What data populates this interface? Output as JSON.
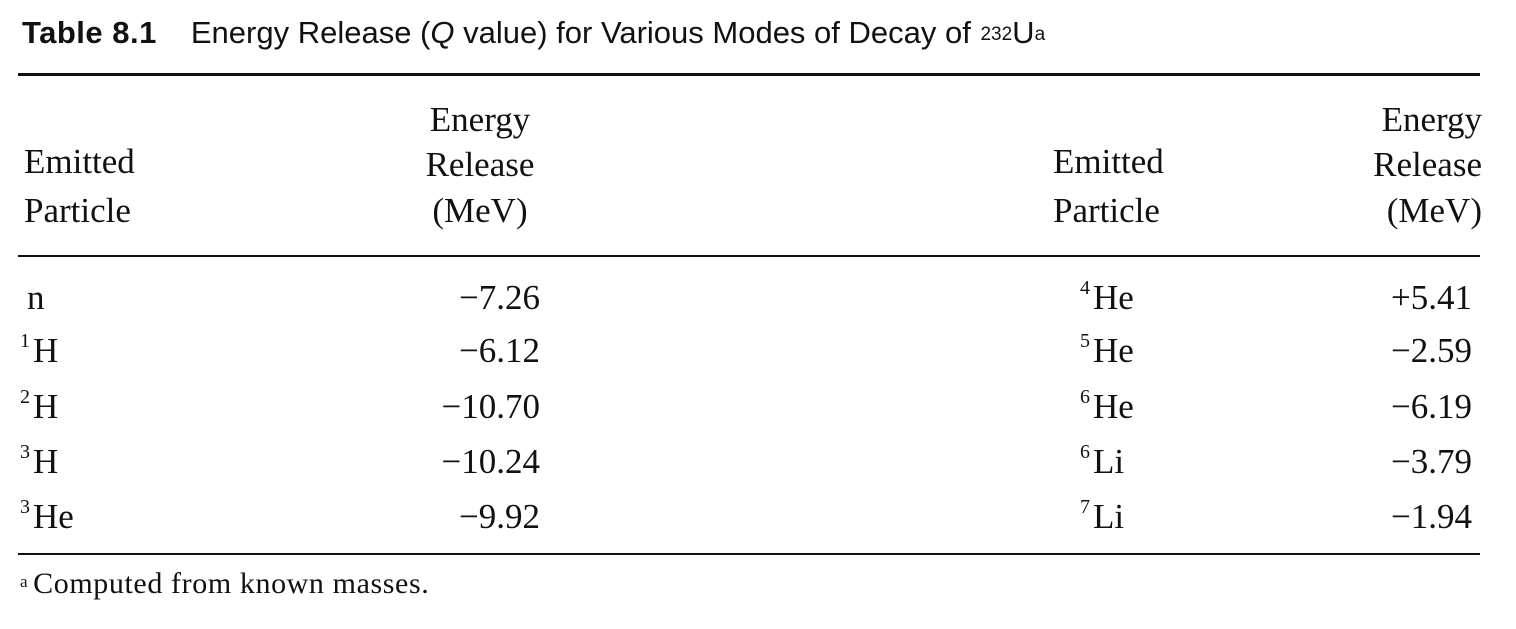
{
  "table": {
    "label": "Table 8.1",
    "caption_prefix": "Energy Release (",
    "caption_italic": "Q",
    "caption_suffix": " value) for Various Modes of Decay of ",
    "caption_mass": "232",
    "caption_symbol": "U",
    "caption_note": "a",
    "headers": {
      "particle_line1": "Emitted",
      "particle_line2": "Particle",
      "energy_line1": "Energy",
      "energy_line2": "Release",
      "energy_line3": "(MeV)"
    },
    "left_rows": [
      {
        "mass": "",
        "symbol": "n",
        "energy": "−7.26"
      },
      {
        "mass": "1",
        "symbol": "H",
        "energy": "−6.12"
      },
      {
        "mass": "2",
        "symbol": "H",
        "energy": "−10.70"
      },
      {
        "mass": "3",
        "symbol": "H",
        "energy": "−10.24"
      },
      {
        "mass": "3",
        "symbol": "He",
        "energy": "−9.92"
      }
    ],
    "right_rows": [
      {
        "mass": "4",
        "symbol": "He",
        "energy": "+5.41"
      },
      {
        "mass": "5",
        "symbol": "He",
        "energy": "−2.59"
      },
      {
        "mass": "6",
        "symbol": "He",
        "energy": "−6.19"
      },
      {
        "mass": "6",
        "symbol": "Li",
        "energy": "−3.79"
      },
      {
        "mass": "7",
        "symbol": "Li",
        "energy": "−1.94"
      }
    ],
    "footnote_mark": "a",
    "footnote_text": "Computed from known masses."
  }
}
